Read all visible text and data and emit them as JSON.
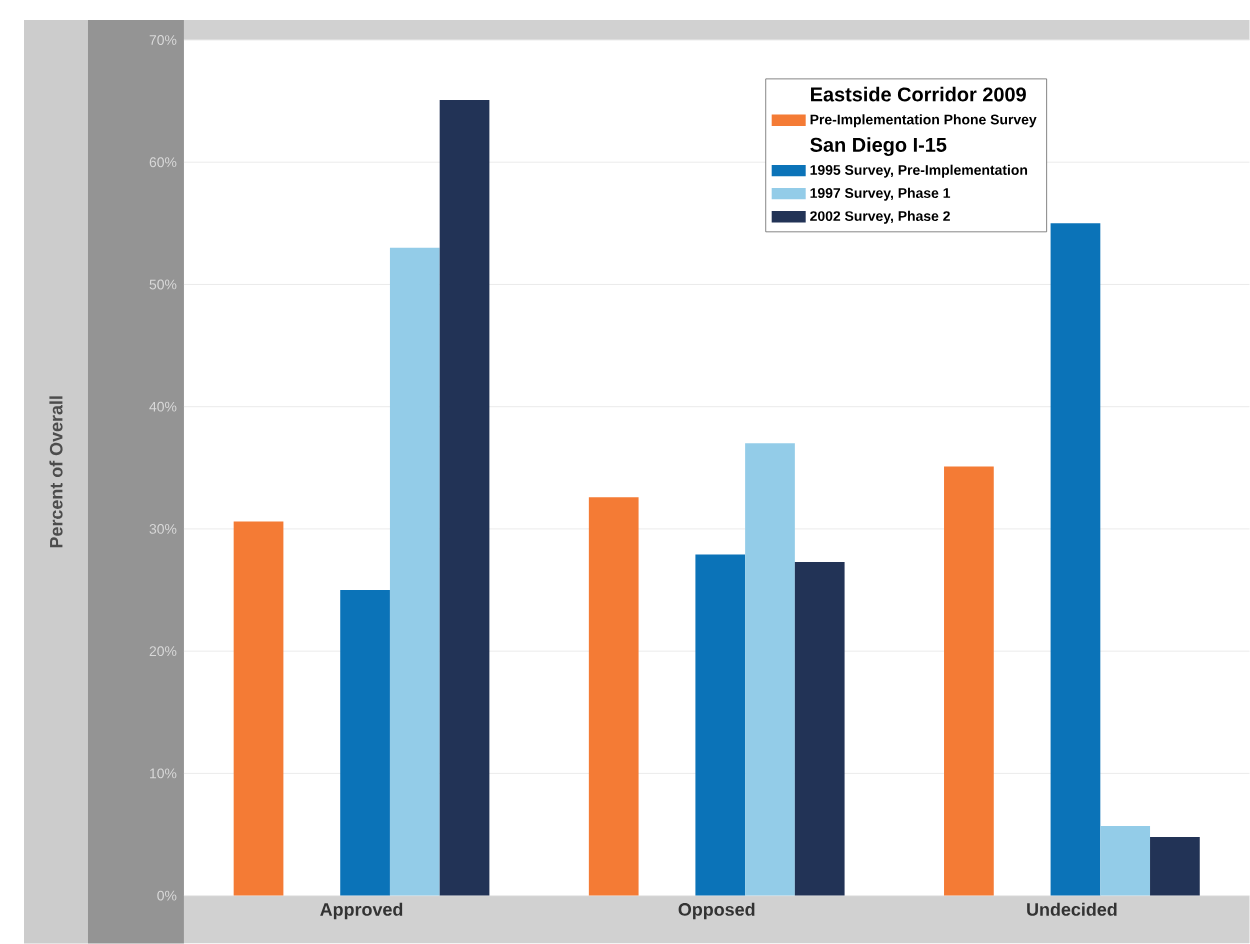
{
  "chart_data": {
    "type": "bar",
    "ylabel": "Percent of Overall",
    "legend_title": "Eastside Corridor 2009",
    "annotations": [
      "San Diego I-15"
    ],
    "categories": [
      "Approved",
      "Opposed",
      "Undecided"
    ],
    "series": [
      {
        "name": "Pre-Implementation Phone Survey",
        "color": "#f47b35",
        "values": [
          30.6,
          32.6,
          35.1
        ]
      },
      {
        "name": "1995 Survey, Pre-Implementation",
        "color": "#0b73b8",
        "values": [
          25.0,
          27.9,
          55.0
        ]
      },
      {
        "name": "1997 Survey, Phase 1",
        "color": "#93cce8",
        "values": [
          53.0,
          37.0,
          5.7
        ]
      },
      {
        "name": "2002 Survey, Phase 2",
        "color": "#223356",
        "values": [
          65.1,
          27.3,
          4.8
        ]
      }
    ],
    "ylim": [
      0,
      70
    ],
    "yticks": [
      {
        "value": 0,
        "label": "0%"
      },
      {
        "value": 10,
        "label": "10%"
      },
      {
        "value": 20,
        "label": "20%"
      },
      {
        "value": 30,
        "label": "30%"
      },
      {
        "value": 40,
        "label": "40%"
      },
      {
        "value": 50,
        "label": "50%"
      },
      {
        "value": 60,
        "label": "60%"
      },
      {
        "value": 70,
        "label": "70%"
      }
    ],
    "grid": "y",
    "legend": "top"
  }
}
